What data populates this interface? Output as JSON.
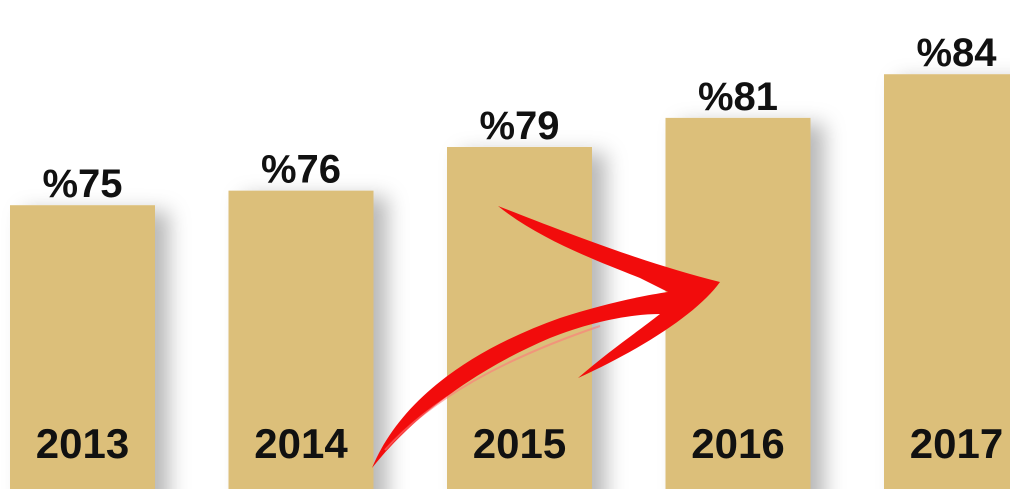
{
  "chart_data": {
    "type": "bar",
    "categories": [
      "2013",
      "2014",
      "2015",
      "2016",
      "2017"
    ],
    "values": [
      75,
      76,
      79,
      81,
      84
    ],
    "value_labels": [
      "%75",
      "%76",
      "%79",
      "%81",
      "%84"
    ],
    "color": "#dcbf7a",
    "ylim": [
      55.5,
      89.1
    ]
  }
}
